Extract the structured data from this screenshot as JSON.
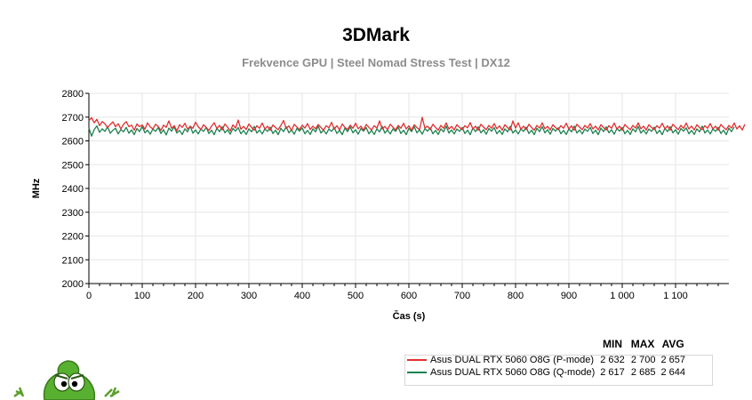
{
  "title": "3DMark",
  "subtitle": "Frekvence GPU | Steel Nomad Stress Test | DX12",
  "colors": {
    "p_mode": "#e03030",
    "q_mode": "#1e8050",
    "grid": "#e6e6e6"
  },
  "legend": {
    "headers": [
      "MIN",
      "MAX",
      "AVG"
    ],
    "rows": [
      {
        "name": "Asus DUAL RTX 5060 O8G (P-mode)",
        "min": "2 632",
        "max": "2 700",
        "avg": "2 657"
      },
      {
        "name": "Asus DUAL RTX 5060 O8G (Q-mode)",
        "min": "2 617",
        "max": "2 685",
        "avg": "2 644"
      }
    ]
  },
  "chart_data": {
    "type": "line",
    "xlabel": "Čas (s)",
    "ylabel": "MHz",
    "xlim": [
      0,
      1200
    ],
    "ylim": [
      2000,
      2800
    ],
    "x_ticks": [
      0,
      100,
      200,
      300,
      400,
      500,
      600,
      700,
      800,
      900,
      1000,
      1100
    ],
    "x_tick_labels": [
      "0",
      "100",
      "200",
      "300",
      "400",
      "500",
      "600",
      "700",
      "800",
      "900",
      "1 000",
      "1 100"
    ],
    "y_ticks": [
      2000,
      2100,
      2200,
      2300,
      2400,
      2500,
      2600,
      2700,
      2800
    ],
    "grid": true,
    "x_step": 5,
    "series": [
      {
        "name": "Asus DUAL RTX 5060 O8G (P-mode)",
        "color": "#e03030",
        "values": [
          2685,
          2698,
          2676,
          2691,
          2664,
          2681,
          2672,
          2656,
          2669,
          2680,
          2660,
          2672,
          2650,
          2670,
          2681,
          2660,
          2666,
          2645,
          2671,
          2660,
          2667,
          2649,
          2676,
          2659,
          2650,
          2670,
          2661,
          2644,
          2666,
          2657,
          2684,
          2653,
          2664,
          2642,
          2668,
          2657,
          2674,
          2650,
          2661,
          2653,
          2679,
          2660,
          2648,
          2668,
          2656,
          2644,
          2662,
          2676,
          2652,
          2665,
          2646,
          2671,
          2658,
          2642,
          2667,
          2654,
          2688,
          2649,
          2661,
          2648,
          2671,
          2657,
          2645,
          2664,
          2653,
          2675,
          2650,
          2662,
          2644,
          2667,
          2656,
          2647,
          2665,
          2686,
          2652,
          2663,
          2643,
          2670,
          2658,
          2648,
          2666,
          2654,
          2673,
          2648,
          2662,
          2651,
          2669,
          2657,
          2645,
          2664,
          2655,
          2678,
          2649,
          2664,
          2646,
          2671,
          2657,
          2648,
          2666,
          2653,
          2674,
          2651,
          2662,
          2645,
          2669,
          2657,
          2646,
          2664,
          2654,
          2684,
          2650,
          2661,
          2647,
          2670,
          2658,
          2646,
          2665,
          2653,
          2674,
          2650,
          2663,
          2644,
          2668,
          2656,
          2647,
          2699,
          2654,
          2662,
          2648,
          2670,
          2657,
          2645,
          2665,
          2653,
          2676,
          2650,
          2661,
          2646,
          2668,
          2657,
          2647,
          2664,
          2655,
          2677,
          2650,
          2662,
          2644,
          2670,
          2658,
          2647,
          2665,
          2653,
          2673,
          2651,
          2663,
          2645,
          2668,
          2656,
          2646,
          2684,
          2654,
          2676,
          2649,
          2662,
          2647,
          2670,
          2657,
          2645,
          2665,
          2654,
          2676,
          2651,
          2661,
          2646,
          2668,
          2656,
          2647,
          2664,
          2653,
          2674,
          2650,
          2663,
          2645,
          2670,
          2658,
          2647,
          2665,
          2654,
          2673,
          2650,
          2662,
          2646,
          2668,
          2656,
          2646,
          2664,
          2653,
          2675,
          2650,
          2662,
          2644,
          2669,
          2657,
          2647,
          2665,
          2654,
          2676,
          2651,
          2662,
          2646,
          2668,
          2657,
          2647,
          2664,
          2654,
          2674,
          2651,
          2663,
          2645,
          2670,
          2658,
          2647,
          2665,
          2653,
          2675,
          2650,
          2662,
          2646,
          2668,
          2656,
          2647,
          2664,
          2653,
          2673,
          2651,
          2662,
          2645,
          2669,
          2657,
          2647,
          2665,
          2654,
          2675,
          2650,
          2663,
          2646,
          2670
        ]
      },
      {
        "name": "Asus DUAL RTX 5060 O8G (Q-mode)",
        "color": "#1e8050",
        "values": [
          2655,
          2620,
          2648,
          2663,
          2636,
          2651,
          2640,
          2660,
          2632,
          2645,
          2653,
          2629,
          2648,
          2638,
          2657,
          2632,
          2646,
          2626,
          2652,
          2639,
          2661,
          2634,
          2645,
          2628,
          2650,
          2640,
          2656,
          2631,
          2647,
          2625,
          2654,
          2641,
          2659,
          2633,
          2644,
          2627,
          2651,
          2638,
          2662,
          2632,
          2646,
          2629,
          2650,
          2640,
          2657,
          2631,
          2645,
          2626,
          2653,
          2639,
          2660,
          2634,
          2647,
          2628,
          2652,
          2641,
          2656,
          2630,
          2644,
          2627,
          2651,
          2638,
          2661,
          2633,
          2646,
          2629,
          2650,
          2640,
          2658,
          2631,
          2645,
          2626,
          2653,
          2639,
          2660,
          2634,
          2647,
          2628,
          2652,
          2641,
          2655,
          2630,
          2644,
          2627,
          2651,
          2638,
          2662,
          2633,
          2646,
          2629,
          2650,
          2640,
          2657,
          2631,
          2645,
          2626,
          2654,
          2639,
          2659,
          2634,
          2647,
          2628,
          2652,
          2641,
          2656,
          2630,
          2644,
          2627,
          2651,
          2638,
          2661,
          2633,
          2646,
          2629,
          2650,
          2640,
          2658,
          2631,
          2645,
          2626,
          2653,
          2639,
          2660,
          2634,
          2647,
          2628,
          2652,
          2641,
          2655,
          2630,
          2644,
          2627,
          2651,
          2638,
          2662,
          2633,
          2646,
          2629,
          2650,
          2640,
          2657,
          2631,
          2645,
          2626,
          2654,
          2639,
          2659,
          2634,
          2647,
          2628,
          2652,
          2641,
          2656,
          2630,
          2644,
          2627,
          2651,
          2638,
          2661,
          2633,
          2646,
          2629,
          2650,
          2640,
          2658,
          2631,
          2645,
          2626,
          2653,
          2639,
          2660,
          2634,
          2647,
          2628,
          2652,
          2641,
          2655,
          2630,
          2644,
          2627,
          2651,
          2638,
          2662,
          2633,
          2646,
          2629,
          2650,
          2640,
          2657,
          2631,
          2645,
          2626,
          2654,
          2639,
          2659,
          2634,
          2647,
          2628,
          2652,
          2641,
          2656,
          2630,
          2644,
          2627,
          2651,
          2638,
          2661,
          2633,
          2646,
          2629,
          2650,
          2640,
          2658,
          2631,
          2645,
          2626,
          2653,
          2639,
          2660,
          2634,
          2647,
          2628,
          2652,
          2641,
          2655,
          2630,
          2644,
          2627,
          2651,
          2638,
          2662,
          2633,
          2646,
          2629,
          2650,
          2640,
          2657,
          2631,
          2645,
          2626,
          2654,
          2639,
          2659
        ]
      }
    ]
  }
}
